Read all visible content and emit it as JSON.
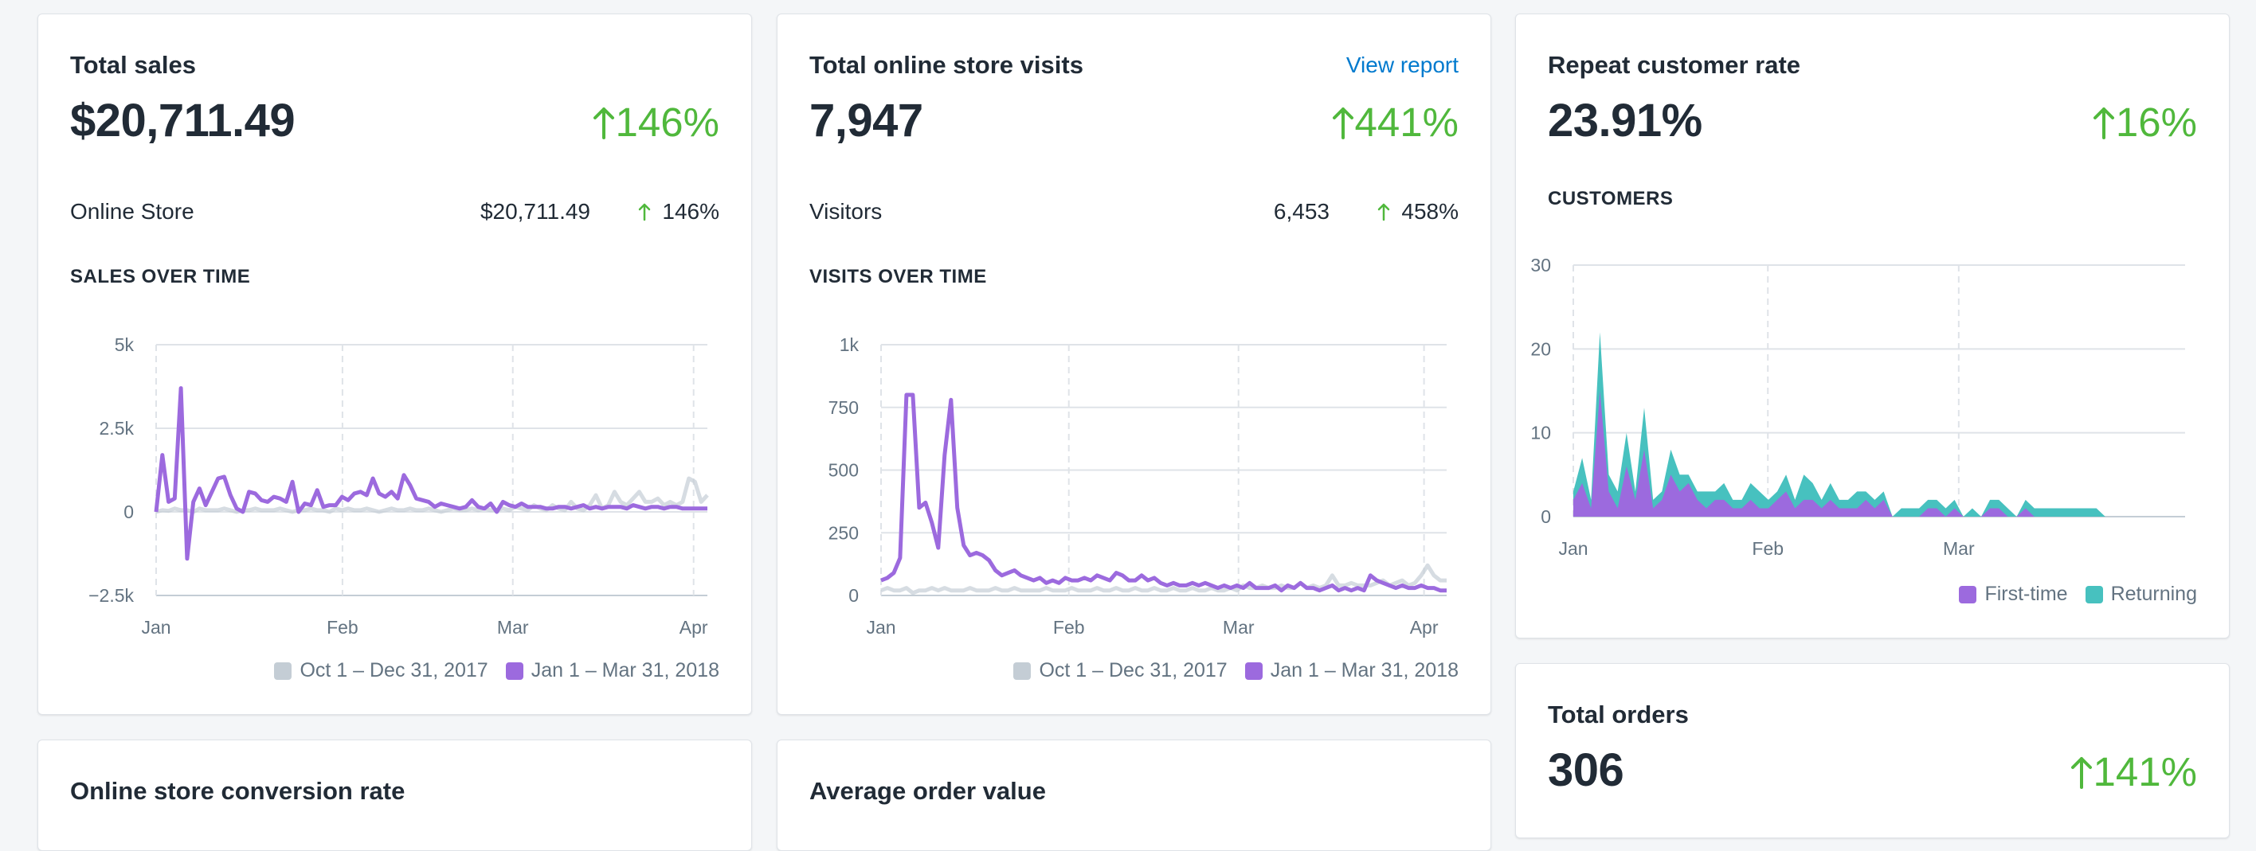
{
  "colors": {
    "accent_purple": "#9c6ade",
    "prev_gray": "#c4cdd5",
    "returning_teal": "#47c1bf",
    "positive_green": "#50b83c",
    "link_blue": "#007ace"
  },
  "sales": {
    "title": "Total sales",
    "value": "$20,711.49",
    "change": "146%",
    "row": {
      "label": "Online Store",
      "value": "$20,711.49",
      "change": "146%"
    },
    "section": "SALES OVER TIME",
    "legend": [
      "Oct 1 – Dec 31, 2017",
      "Jan 1 – Mar 31, 2018"
    ]
  },
  "visits": {
    "title": "Total online store visits",
    "link": "View report",
    "value": "7,947",
    "change": "441%",
    "row": {
      "label": "Visitors",
      "value": "6,453",
      "change": "458%"
    },
    "section": "VISITS OVER TIME",
    "legend": [
      "Oct 1 – Dec 31, 2017",
      "Jan 1 – Mar 31, 2018"
    ]
  },
  "repeat": {
    "title": "Repeat customer rate",
    "value": "23.91%",
    "change": "16%",
    "section": "CUSTOMERS",
    "legend": [
      "First-time",
      "Returning"
    ]
  },
  "orders": {
    "title": "Total orders",
    "value": "306",
    "change": "141%"
  },
  "conversion": {
    "title": "Online store conversion rate"
  },
  "aov": {
    "title": "Average order value"
  },
  "chart_data": [
    {
      "type": "line",
      "id": "sales",
      "xlabels": [
        "Jan",
        "Feb",
        "Mar",
        "Apr"
      ],
      "ylabels": [
        "5k",
        "2.5k",
        "0",
        "−2.5k"
      ],
      "ylim": [
        -2500,
        5000
      ],
      "grid": true,
      "series": [
        {
          "name": "Jan 1 – Mar 31, 2018",
          "color": "#9c6ade",
          "values": [
            0,
            1700,
            300,
            400,
            3700,
            -1400,
            300,
            700,
            200,
            600,
            1000,
            1050,
            500,
            100,
            0,
            600,
            550,
            350,
            300,
            450,
            400,
            300,
            900,
            0,
            250,
            200,
            650,
            150,
            200,
            200,
            450,
            350,
            550,
            600,
            500,
            1000,
            550,
            450,
            600,
            400,
            1100,
            800,
            400,
            350,
            300,
            150,
            250,
            200,
            150,
            100,
            150,
            350,
            150,
            100,
            250,
            0,
            300,
            200,
            150,
            250,
            150,
            150,
            150,
            100,
            100,
            150,
            150,
            100,
            150,
            200,
            100,
            150,
            100,
            150,
            150,
            150,
            100,
            200,
            150,
            100,
            150,
            150,
            100,
            150,
            150,
            100,
            100,
            100,
            100,
            100
          ]
        },
        {
          "name": "Oct 1 – Dec 31, 2017",
          "color": "#c4cdd5",
          "values": [
            0,
            50,
            30,
            100,
            50,
            50,
            0,
            100,
            50,
            50,
            50,
            100,
            50,
            0,
            50,
            50,
            100,
            50,
            50,
            50,
            100,
            50,
            0,
            50,
            50,
            100,
            50,
            50,
            0,
            100,
            50,
            100,
            50,
            50,
            100,
            50,
            0,
            50,
            100,
            50,
            50,
            100,
            50,
            50,
            100,
            50,
            0,
            50,
            100,
            50,
            50,
            100,
            50,
            100,
            50,
            50,
            100,
            50,
            150,
            100,
            50,
            200,
            100,
            50,
            200,
            100,
            50,
            300,
            100,
            50,
            200,
            500,
            100,
            200,
            600,
            300,
            200,
            400,
            600,
            300,
            300,
            400,
            200,
            300,
            200,
            300,
            1000,
            900,
            300,
            500
          ]
        }
      ]
    },
    {
      "type": "line",
      "id": "visits",
      "xlabels": [
        "Jan",
        "Feb",
        "Mar",
        "Apr"
      ],
      "ylabels": [
        "1k",
        "750",
        "500",
        "250",
        "0"
      ],
      "ylim": [
        0,
        1000
      ],
      "grid": true,
      "series": [
        {
          "name": "Jan 1 – Mar 31, 2018",
          "color": "#9c6ade",
          "values": [
            60,
            70,
            90,
            150,
            800,
            800,
            350,
            370,
            290,
            190,
            560,
            780,
            350,
            200,
            160,
            170,
            160,
            140,
            100,
            80,
            90,
            100,
            80,
            70,
            60,
            70,
            50,
            60,
            50,
            70,
            60,
            60,
            70,
            60,
            80,
            70,
            60,
            90,
            80,
            60,
            60,
            80,
            60,
            70,
            50,
            40,
            50,
            40,
            40,
            50,
            40,
            50,
            40,
            30,
            40,
            30,
            40,
            30,
            50,
            30,
            30,
            30,
            40,
            20,
            40,
            30,
            50,
            30,
            30,
            20,
            30,
            40,
            20,
            30,
            20,
            30,
            20,
            80,
            60,
            50,
            40,
            30,
            40,
            30,
            30,
            40,
            30,
            30,
            20,
            20
          ]
        },
        {
          "name": "Oct 1 – Dec 31, 2017",
          "color": "#c4cdd5",
          "values": [
            20,
            30,
            20,
            20,
            30,
            10,
            20,
            20,
            30,
            20,
            30,
            20,
            20,
            20,
            30,
            20,
            20,
            20,
            30,
            20,
            20,
            30,
            20,
            20,
            20,
            20,
            30,
            20,
            20,
            20,
            30,
            20,
            20,
            20,
            30,
            20,
            20,
            30,
            20,
            20,
            30,
            20,
            20,
            30,
            20,
            20,
            30,
            20,
            20,
            30,
            20,
            20,
            30,
            20,
            20,
            30,
            20,
            40,
            30,
            30,
            40,
            30,
            30,
            40,
            30,
            30,
            50,
            30,
            40,
            30,
            40,
            80,
            40,
            40,
            50,
            40,
            40,
            40,
            50,
            60,
            40,
            50,
            60,
            40,
            50,
            80,
            120,
            80,
            60,
            60
          ]
        }
      ]
    },
    {
      "type": "area",
      "id": "customers",
      "xlabels": [
        "Jan",
        "Feb",
        "Mar"
      ],
      "ylabels": [
        "30",
        "20",
        "10",
        "0"
      ],
      "ylim": [
        0,
        30
      ],
      "grid": true,
      "series": [
        {
          "name": "First-time",
          "color": "#9c6ade",
          "values": [
            2,
            4,
            1,
            15,
            3,
            1,
            6,
            2,
            8,
            1,
            2,
            5,
            3,
            4,
            2,
            1,
            2,
            2,
            1,
            1,
            2,
            1,
            1,
            2,
            3,
            1,
            2,
            2,
            1,
            2,
            1,
            1,
            1,
            2,
            1,
            2,
            0,
            0,
            0,
            0,
            1,
            1,
            0,
            1,
            0,
            0,
            0,
            1,
            1,
            0,
            0,
            1,
            0,
            0,
            0,
            0,
            0,
            0,
            0,
            0,
            0,
            0,
            0,
            0,
            0,
            0,
            0,
            0,
            0,
            0
          ]
        },
        {
          "name": "Returning",
          "color": "#47c1bf",
          "values": [
            1,
            3,
            1,
            7,
            2,
            2,
            4,
            1,
            5,
            1,
            1,
            3,
            2,
            1,
            1,
            2,
            1,
            2,
            1,
            1,
            2,
            2,
            1,
            1,
            2,
            1,
            3,
            2,
            1,
            2,
            1,
            1,
            2,
            1,
            1,
            1,
            0,
            1,
            1,
            1,
            1,
            1,
            1,
            1,
            0,
            1,
            0,
            1,
            1,
            1,
            0,
            1,
            1,
            1,
            1,
            1,
            1,
            1,
            1,
            1,
            0,
            0,
            0,
            0,
            0,
            0,
            0,
            0,
            0,
            0
          ]
        }
      ]
    }
  ]
}
